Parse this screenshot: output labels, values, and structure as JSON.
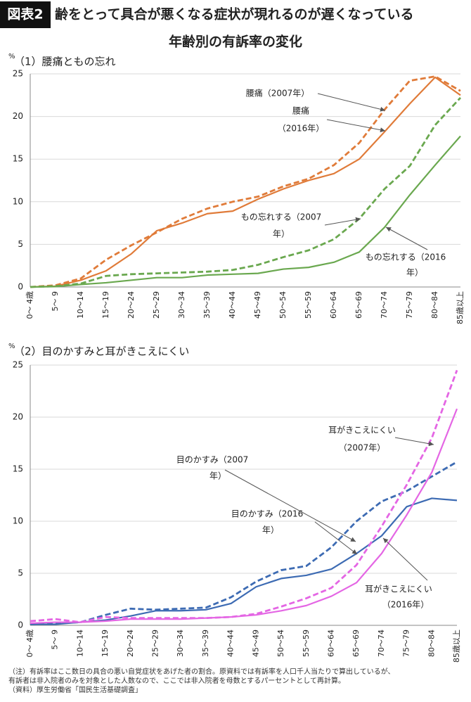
{
  "header": {
    "badge": "図表2",
    "title": "齢をとって具合が悪くなる症状が現れるのが遅くなっている",
    "subtitle": "年齢別の有訴率の変化"
  },
  "chart_data": [
    {
      "type": "line",
      "title": "（1）腰痛ともの忘れ",
      "y_unit": "%",
      "categories": [
        "0～ 4歳",
        "5～ 9",
        "10～14",
        "15～19",
        "20～24",
        "25～29",
        "30～34",
        "35～39",
        "40～44",
        "45～49",
        "50～54",
        "55～59",
        "60～64",
        "65～69",
        "70～74",
        "75～79",
        "80～84",
        "85歳以上"
      ],
      "ylim": [
        0,
        25
      ],
      "yticks": [
        0,
        5,
        10,
        15,
        20,
        25
      ],
      "grid": true,
      "series": [
        {
          "color": "#e07b39",
          "dashed": true,
          "values": [
            0,
            0.2,
            1.0,
            3.2,
            4.9,
            6.4,
            8.0,
            9.2,
            10.0,
            10.6,
            11.8,
            12.7,
            14.3,
            16.9,
            20.8,
            24.2,
            24.7,
            23.0
          ]
        },
        {
          "color": "#e07b39",
          "dashed": false,
          "values": [
            0,
            0.1,
            0.8,
            1.9,
            3.9,
            6.6,
            7.5,
            8.6,
            8.9,
            10.3,
            11.5,
            12.5,
            13.3,
            15.0,
            18.2,
            21.5,
            24.6,
            22.5
          ]
        },
        {
          "color": "#6aa84f",
          "dashed": true,
          "values": [
            0,
            0.1,
            0.4,
            1.3,
            1.5,
            1.6,
            1.7,
            1.8,
            2.0,
            2.6,
            3.5,
            4.3,
            5.6,
            8.0,
            11.5,
            14.2,
            19.0,
            22.2
          ]
        },
        {
          "color": "#6aa84f",
          "dashed": false,
          "values": [
            0,
            0.05,
            0.3,
            0.5,
            0.8,
            1.1,
            1.1,
            1.4,
            1.5,
            1.6,
            2.1,
            2.3,
            2.9,
            4.1,
            7.0,
            10.8,
            14.3,
            17.7
          ]
        }
      ],
      "annotations": [
        {
          "lines": [
            "腰痛（2007年）"
          ]
        },
        {
          "lines": [
            "腰痛",
            "（2016年）"
          ]
        },
        {
          "lines": [
            "もの忘れする（2007",
            "年）"
          ]
        },
        {
          "lines": [
            "もの忘れする（2016",
            "年）"
          ]
        }
      ]
    },
    {
      "type": "line",
      "title": "（2）目のかすみと耳がきこえにくい",
      "y_unit": "%",
      "categories": [
        "0～ 4歳",
        "5～ 9",
        "10～14",
        "15～19",
        "20～24",
        "25～29",
        "30～34",
        "35～39",
        "40～44",
        "45～49",
        "50～54",
        "55～59",
        "60～64",
        "65～69",
        "70～74",
        "75～79",
        "80～84",
        "85歳以上"
      ],
      "ylim": [
        0,
        25
      ],
      "yticks": [
        0,
        5,
        10,
        15,
        20,
        25
      ],
      "grid": true,
      "series": [
        {
          "color": "#3d6bb3",
          "dashed": true,
          "values": [
            0.1,
            0.2,
            0.3,
            1.0,
            1.6,
            1.5,
            1.6,
            1.7,
            2.7,
            4.2,
            5.3,
            5.7,
            7.5,
            10.0,
            11.9,
            12.9,
            14.3,
            15.7
          ]
        },
        {
          "color": "#3d6bb3",
          "dashed": false,
          "values": [
            0.1,
            0.1,
            0.3,
            0.5,
            0.9,
            1.4,
            1.4,
            1.5,
            2.1,
            3.7,
            4.5,
            4.8,
            5.4,
            6.9,
            8.6,
            11.4,
            12.2,
            12.0
          ]
        },
        {
          "color": "#e466e4",
          "dashed": true,
          "values": [
            0.4,
            0.6,
            0.3,
            0.8,
            0.7,
            0.7,
            0.7,
            0.7,
            0.8,
            1.1,
            1.8,
            2.6,
            3.6,
            5.8,
            9.5,
            13.5,
            18.0,
            24.5
          ]
        },
        {
          "color": "#e466e4",
          "dashed": false,
          "values": [
            0.2,
            0.3,
            0.3,
            0.4,
            0.6,
            0.6,
            0.6,
            0.7,
            0.8,
            1.0,
            1.4,
            1.9,
            2.8,
            4.1,
            6.9,
            10.6,
            14.7,
            20.8
          ]
        }
      ],
      "annotations": [
        {
          "lines": [
            "耳がきこえにくい",
            "（2007年）"
          ]
        },
        {
          "lines": [
            "目のかすみ（2007",
            "年）"
          ]
        },
        {
          "lines": [
            "目のかすみ（2016",
            "年）"
          ]
        },
        {
          "lines": [
            "耳がきこえにくい",
            "（2016年）"
          ]
        }
      ]
    }
  ],
  "notes": [
    "（注）有訴率はここ数日の具合の悪い自覚症状をあげた者の割合。原資料では有訴率を人口千人当たりで算出しているが、",
    "有訴者は非入院者のみを対象とした人数なので、ここでは非入院者を母数とするパーセントとして再計算。",
    "（資料）厚生労働省「国民生活基礎調査」"
  ]
}
